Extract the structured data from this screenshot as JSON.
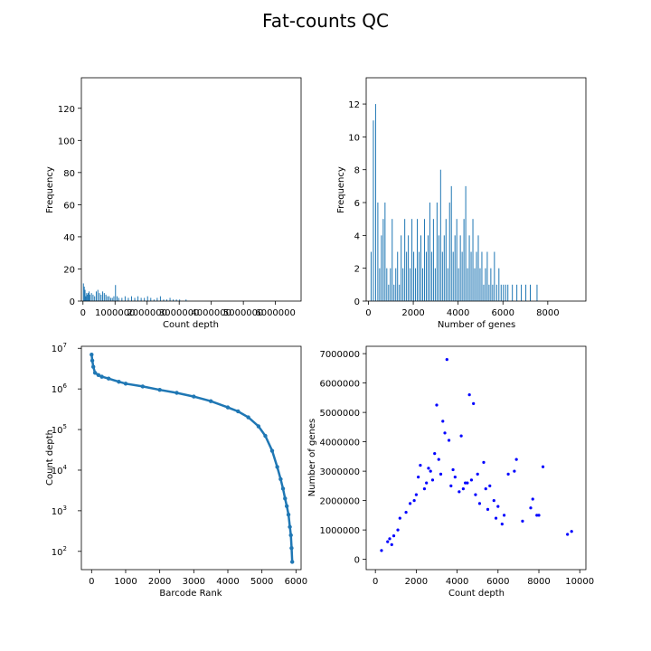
{
  "figure": {
    "title": "Fat-counts QC",
    "colors": {
      "bars": "#1f77b4",
      "rank_line": "#1f77b4",
      "scatter": "#0000ff",
      "axes": "#000000"
    }
  },
  "chart_data": [
    {
      "id": "count-depth-histogram",
      "type": "bar",
      "title": "",
      "xlabel": "Count depth",
      "ylabel": "Frequency",
      "xlim": [
        -50000,
        6800000
      ],
      "ylim": [
        0,
        139
      ],
      "xticks": [
        0,
        1000000,
        2000000,
        3000000,
        4000000,
        5000000,
        6000000
      ],
      "xtick_labels": [
        "0",
        "1000000",
        "2000000",
        "3000000",
        "4000000",
        "5000000",
        "6000000"
      ],
      "yticks": [
        0,
        20,
        40,
        60,
        80,
        100,
        120
      ],
      "ytick_labels": [
        "0",
        "20",
        "40",
        "60",
        "80",
        "100",
        "120"
      ],
      "bin_width": 25000,
      "x": [
        0,
        25000,
        50000,
        75000,
        100000,
        125000,
        150000,
        175000,
        200000,
        250000,
        300000,
        350000,
        400000,
        450000,
        500000,
        550000,
        600000,
        650000,
        700000,
        750000,
        800000,
        850000,
        900000,
        950000,
        1000000,
        1050000,
        1100000,
        1200000,
        1300000,
        1400000,
        1500000,
        1600000,
        1700000,
        1800000,
        1900000,
        2000000,
        2100000,
        2200000,
        2300000,
        2400000,
        2500000,
        2600000,
        2700000,
        2800000,
        2900000,
        3000000,
        3200000
      ],
      "values": [
        11,
        9,
        7,
        3,
        5,
        4,
        5,
        6,
        4,
        5,
        4,
        3,
        6,
        7,
        5,
        4,
        6,
        5,
        4,
        3,
        3,
        2,
        2,
        3,
        10,
        3,
        2,
        2,
        3,
        2,
        3,
        2,
        3,
        2,
        2,
        3,
        2,
        1,
        2,
        3,
        1,
        1,
        2,
        1,
        1,
        1,
        1
      ]
    },
    {
      "id": "genes-histogram",
      "type": "bar",
      "title": "",
      "xlabel": "Number of genes",
      "ylabel": "Frequency",
      "xlim": [
        -100,
        9700
      ],
      "ylim": [
        0,
        13.6
      ],
      "xticks": [
        0,
        2000,
        4000,
        6000,
        8000
      ],
      "xtick_labels": [
        "0",
        "2000",
        "4000",
        "6000",
        "8000"
      ],
      "yticks": [
        0,
        2,
        4,
        6,
        8,
        10,
        12
      ],
      "ytick_labels": [
        "0",
        "2",
        "4",
        "6",
        "8",
        "10",
        "12"
      ],
      "bin_width": 30,
      "x": [
        100,
        200,
        300,
        400,
        480,
        560,
        640,
        720,
        800,
        880,
        960,
        1040,
        1120,
        1200,
        1280,
        1360,
        1440,
        1520,
        1600,
        1680,
        1760,
        1840,
        1920,
        2000,
        2080,
        2160,
        2240,
        2320,
        2400,
        2480,
        2560,
        2640,
        2720,
        2800,
        2880,
        2960,
        3040,
        3120,
        3200,
        3280,
        3360,
        3440,
        3520,
        3600,
        3680,
        3760,
        3840,
        3920,
        4000,
        4080,
        4160,
        4240,
        4320,
        4400,
        4480,
        4560,
        4640,
        4720,
        4800,
        4880,
        4960,
        5040,
        5120,
        5200,
        5280,
        5360,
        5440,
        5520,
        5600,
        5700,
        5800,
        5900,
        6000,
        6100,
        6200,
        6400,
        6600,
        6800,
        7000,
        7200,
        7500
      ],
      "values": [
        3,
        11,
        12,
        6,
        2,
        4,
        5,
        6,
        2,
        1,
        2,
        5,
        1,
        2,
        3,
        1,
        4,
        2,
        5,
        3,
        4,
        2,
        5,
        3,
        2,
        5,
        3,
        4,
        2,
        5,
        3,
        4,
        6,
        3,
        5,
        2,
        6,
        4,
        8,
        3,
        4,
        5,
        2,
        6,
        7,
        3,
        4,
        5,
        2,
        4,
        3,
        5,
        7,
        2,
        4,
        3,
        5,
        2,
        3,
        4,
        2,
        3,
        1,
        2,
        3,
        1,
        2,
        1,
        3,
        1,
        2,
        1,
        1,
        1,
        1,
        1,
        1,
        1,
        1,
        1,
        1
      ]
    },
    {
      "id": "barcode-rank-plot",
      "type": "line",
      "title": "",
      "xlabel": "Barcode Rank",
      "ylabel": "Count depth",
      "yscale": "log",
      "xlim": [
        -300,
        6150
      ],
      "ylim_log10": [
        1.55,
        7.05
      ],
      "xticks": [
        0,
        1000,
        2000,
        3000,
        4000,
        5000,
        6000
      ],
      "xtick_labels": [
        "0",
        "1000",
        "2000",
        "3000",
        "4000",
        "5000",
        "6000"
      ],
      "yticks_log10": [
        2,
        3,
        4,
        5,
        6,
        7
      ],
      "ytick_labels": [
        "10",
        "10",
        "10",
        "10",
        "10",
        "10"
      ],
      "ytick_exponents": [
        "2",
        "3",
        "4",
        "5",
        "6",
        "7"
      ],
      "x": [
        0,
        20,
        50,
        100,
        200,
        300,
        500,
        800,
        1000,
        1500,
        2000,
        2500,
        3000,
        3500,
        4000,
        4300,
        4600,
        4900,
        5100,
        5300,
        5450,
        5550,
        5620,
        5680,
        5730,
        5780,
        5820,
        5850,
        5870,
        5890
      ],
      "y": [
        7000000,
        5000000,
        3500000,
        2500000,
        2200000,
        2000000,
        1800000,
        1500000,
        1350000,
        1150000,
        950000,
        800000,
        650000,
        500000,
        350000,
        280000,
        200000,
        120000,
        70000,
        30000,
        12000,
        6000,
        3500,
        2000,
        1300,
        800,
        400,
        250,
        120,
        55
      ]
    },
    {
      "id": "genes-vs-depth-scatter",
      "type": "scatter",
      "title": "",
      "xlabel": "Count depth",
      "ylabel": "Number of genes",
      "xlim": [
        -450,
        10300
      ],
      "ylim": [
        -350000,
        7250000
      ],
      "xticks": [
        0,
        2000,
        4000,
        6000,
        8000,
        10000
      ],
      "xtick_labels": [
        "0",
        "2000",
        "4000",
        "6000",
        "8000",
        "10000"
      ],
      "yticks": [
        0,
        1000000,
        2000000,
        3000000,
        4000000,
        5000000,
        6000000,
        7000000
      ],
      "ytick_labels": [
        "0",
        "1000000",
        "2000000",
        "3000000",
        "4000000",
        "5000000",
        "6000000",
        "7000000"
      ],
      "x": [
        3500,
        4600,
        4800,
        3000,
        3300,
        3400,
        3600,
        4200,
        5000,
        5300,
        6800,
        8200,
        9400,
        9600,
        7700,
        7900,
        6500,
        6900,
        7600,
        7200,
        8000,
        2600,
        2900,
        2200,
        3100,
        3800,
        4700,
        5600,
        5800,
        6000,
        6300,
        5400,
        4900,
        4400,
        2400,
        1900,
        1200,
        900,
        600,
        300,
        1500,
        1700,
        2000,
        2100,
        2500,
        2700,
        3200,
        3700,
        3900,
        4100,
        4300,
        4500,
        5100,
        5500,
        5900,
        6200,
        2800,
        1100,
        800,
        700
      ],
      "y": [
        6800000,
        5600000,
        5300000,
        5250000,
        4700000,
        4300000,
        4050000,
        4200000,
        2900000,
        3300000,
        3000000,
        3150000,
        850000,
        950000,
        2050000,
        1500000,
        2900000,
        3400000,
        1750000,
        1300000,
        1500000,
        3100000,
        3600000,
        3200000,
        3400000,
        3050000,
        2700000,
        2500000,
        2000000,
        1800000,
        1500000,
        2400000,
        2200000,
        2600000,
        2400000,
        2000000,
        1400000,
        800000,
        600000,
        300000,
        1600000,
        1900000,
        2200000,
        2800000,
        2600000,
        3000000,
        2900000,
        2500000,
        2800000,
        2300000,
        2400000,
        2600000,
        1900000,
        1700000,
        1400000,
        1200000,
        2700000,
        1000000,
        500000,
        700000
      ]
    }
  ]
}
